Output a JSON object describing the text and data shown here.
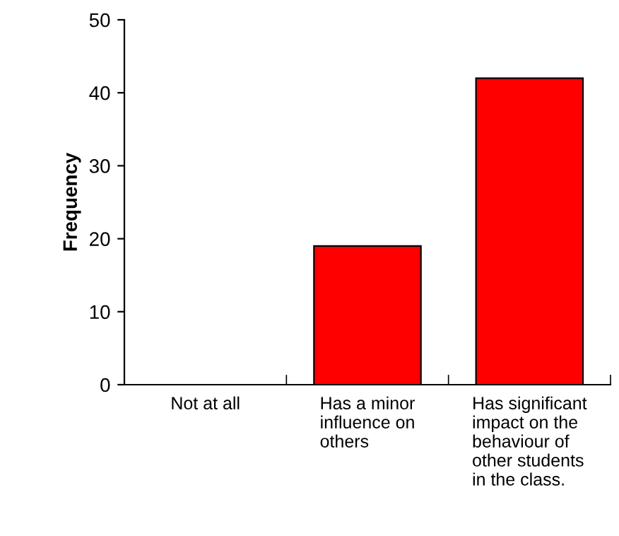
{
  "chart_data": {
    "type": "bar",
    "ylabel": "Frequency",
    "categories": [
      "Not at all",
      "Has a minor\ninfluence on\nothers",
      "Has significant\nimpact on the\nbehaviour of\nother students\nin the class."
    ],
    "values": [
      0,
      19,
      42
    ],
    "color": "#ff0000",
    "ylim": [
      0,
      50
    ],
    "yticks": [
      0,
      10,
      20,
      30,
      40,
      50
    ],
    "grid": false,
    "legend": false
  }
}
